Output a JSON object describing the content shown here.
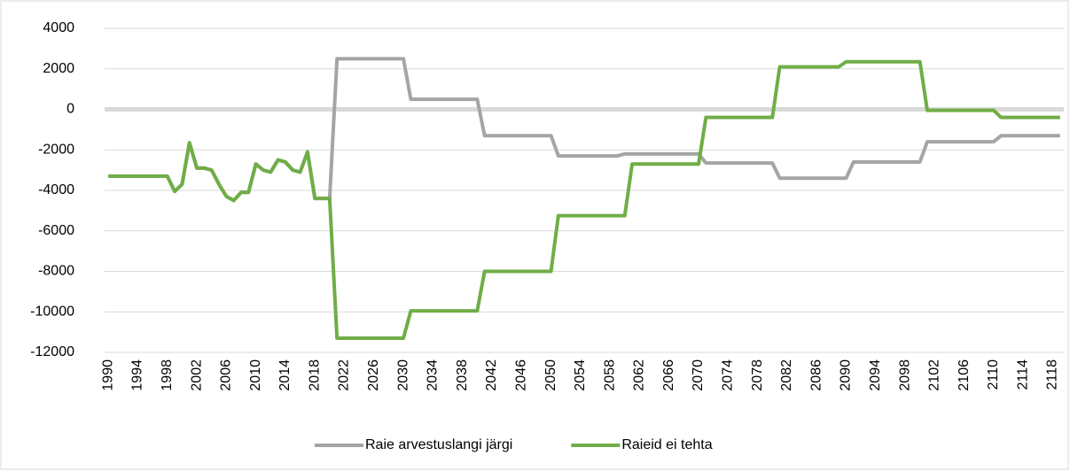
{
  "chart_data": {
    "type": "line",
    "categories": [
      "1990",
      null,
      null,
      null,
      "1994",
      null,
      null,
      null,
      "1998",
      null,
      null,
      null,
      "2002",
      null,
      null,
      null,
      "2006",
      null,
      null,
      null,
      "2010",
      null,
      null,
      null,
      "2014",
      null,
      null,
      null,
      "2018",
      null,
      null,
      null,
      "2022",
      null,
      null,
      null,
      "2026",
      null,
      null,
      null,
      "2030",
      null,
      null,
      null,
      "2034",
      null,
      null,
      null,
      "2038",
      null,
      null,
      null,
      "2042",
      null,
      null,
      null,
      "2046",
      null,
      null,
      null,
      "2050",
      null,
      null,
      null,
      "2054",
      null,
      null,
      null,
      "2058",
      null,
      null,
      null,
      "2062",
      null,
      null,
      null,
      "2066",
      null,
      null,
      null,
      "2070",
      null,
      null,
      null,
      "2074",
      null,
      null,
      null,
      "2078",
      null,
      null,
      null,
      "2082",
      null,
      null,
      null,
      "2086",
      null,
      null,
      null,
      "2090",
      null,
      null,
      null,
      "2094",
      null,
      null,
      null,
      "2098",
      null,
      null,
      null,
      "2102",
      null,
      null,
      null,
      "2106",
      null,
      null,
      null,
      "2110",
      null,
      null,
      null,
      "2114",
      null,
      null,
      null,
      "2118",
      null
    ],
    "series": [
      {
        "name": "Raie arvestuslangi järgi",
        "color": "#a5a5a5",
        "values": [
          -3300,
          -3300,
          -3300,
          -3300,
          -3300,
          -3300,
          -3300,
          -3300,
          -3300,
          -4050,
          -3700,
          -1650,
          -2900,
          -2900,
          -3000,
          -3700,
          -4300,
          -4500,
          -4100,
          -4100,
          -2700,
          -3000,
          -3100,
          -2500,
          -2600,
          -3000,
          -3100,
          -2100,
          -4400,
          -4400,
          -4400,
          2500,
          2500,
          2500,
          2500,
          2500,
          2500,
          2500,
          2500,
          2500,
          2500,
          500,
          500,
          500,
          500,
          500,
          500,
          500,
          500,
          500,
          500,
          -1300,
          -1300,
          -1300,
          -1300,
          -1300,
          -1300,
          -1300,
          -1300,
          -1300,
          -1300,
          -2300,
          -2300,
          -2300,
          -2300,
          -2300,
          -2300,
          -2300,
          -2300,
          -2300,
          -2200,
          -2200,
          -2200,
          -2200,
          -2200,
          -2200,
          -2200,
          -2200,
          -2200,
          -2200,
          -2200,
          -2650,
          -2650,
          -2650,
          -2650,
          -2650,
          -2650,
          -2650,
          -2650,
          -2650,
          -2650,
          -3400,
          -3400,
          -3400,
          -3400,
          -3400,
          -3400,
          -3400,
          -3400,
          -3400,
          -3400,
          -2600,
          -2600,
          -2600,
          -2600,
          -2600,
          -2600,
          -2600,
          -2600,
          -2600,
          -2600,
          -1600,
          -1600,
          -1600,
          -1600,
          -1600,
          -1600,
          -1600,
          -1600,
          -1600,
          -1600,
          -1300,
          -1300,
          -1300,
          -1300,
          -1300,
          -1300,
          -1300,
          -1300,
          -1300
        ]
      },
      {
        "name": "Raieid ei tehta",
        "color": "#70ad47",
        "values": [
          -3300,
          -3300,
          -3300,
          -3300,
          -3300,
          -3300,
          -3300,
          -3300,
          -3300,
          -4050,
          -3700,
          -1650,
          -2900,
          -2900,
          -3000,
          -3700,
          -4300,
          -4500,
          -4100,
          -4100,
          -2700,
          -3000,
          -3100,
          -2500,
          -2600,
          -3000,
          -3100,
          -2100,
          -4400,
          -4400,
          -4400,
          -11300,
          -11300,
          -11300,
          -11300,
          -11300,
          -11300,
          -11300,
          -11300,
          -11300,
          -11300,
          -9950,
          -9950,
          -9950,
          -9950,
          -9950,
          -9950,
          -9950,
          -9950,
          -9950,
          -9950,
          -8000,
          -8000,
          -8000,
          -8000,
          -8000,
          -8000,
          -8000,
          -8000,
          -8000,
          -8000,
          -5250,
          -5250,
          -5250,
          -5250,
          -5250,
          -5250,
          -5250,
          -5250,
          -5250,
          -5250,
          -2700,
          -2700,
          -2700,
          -2700,
          -2700,
          -2700,
          -2700,
          -2700,
          -2700,
          -2700,
          -400,
          -400,
          -400,
          -400,
          -400,
          -400,
          -400,
          -400,
          -400,
          -400,
          2100,
          2100,
          2100,
          2100,
          2100,
          2100,
          2100,
          2100,
          2100,
          2350,
          2350,
          2350,
          2350,
          2350,
          2350,
          2350,
          2350,
          2350,
          2350,
          2350,
          -50,
          -50,
          -50,
          -50,
          -50,
          -50,
          -50,
          -50,
          -50,
          -50,
          -400,
          -400,
          -400,
          -400,
          -400,
          -400,
          -400,
          -400,
          -400
        ]
      }
    ],
    "ylim": [
      -12000,
      4000
    ],
    "yticks": [
      -12000,
      -10000,
      -8000,
      -6000,
      -4000,
      -2000,
      0,
      2000,
      4000
    ],
    "grid": true,
    "legend": "bottom"
  }
}
